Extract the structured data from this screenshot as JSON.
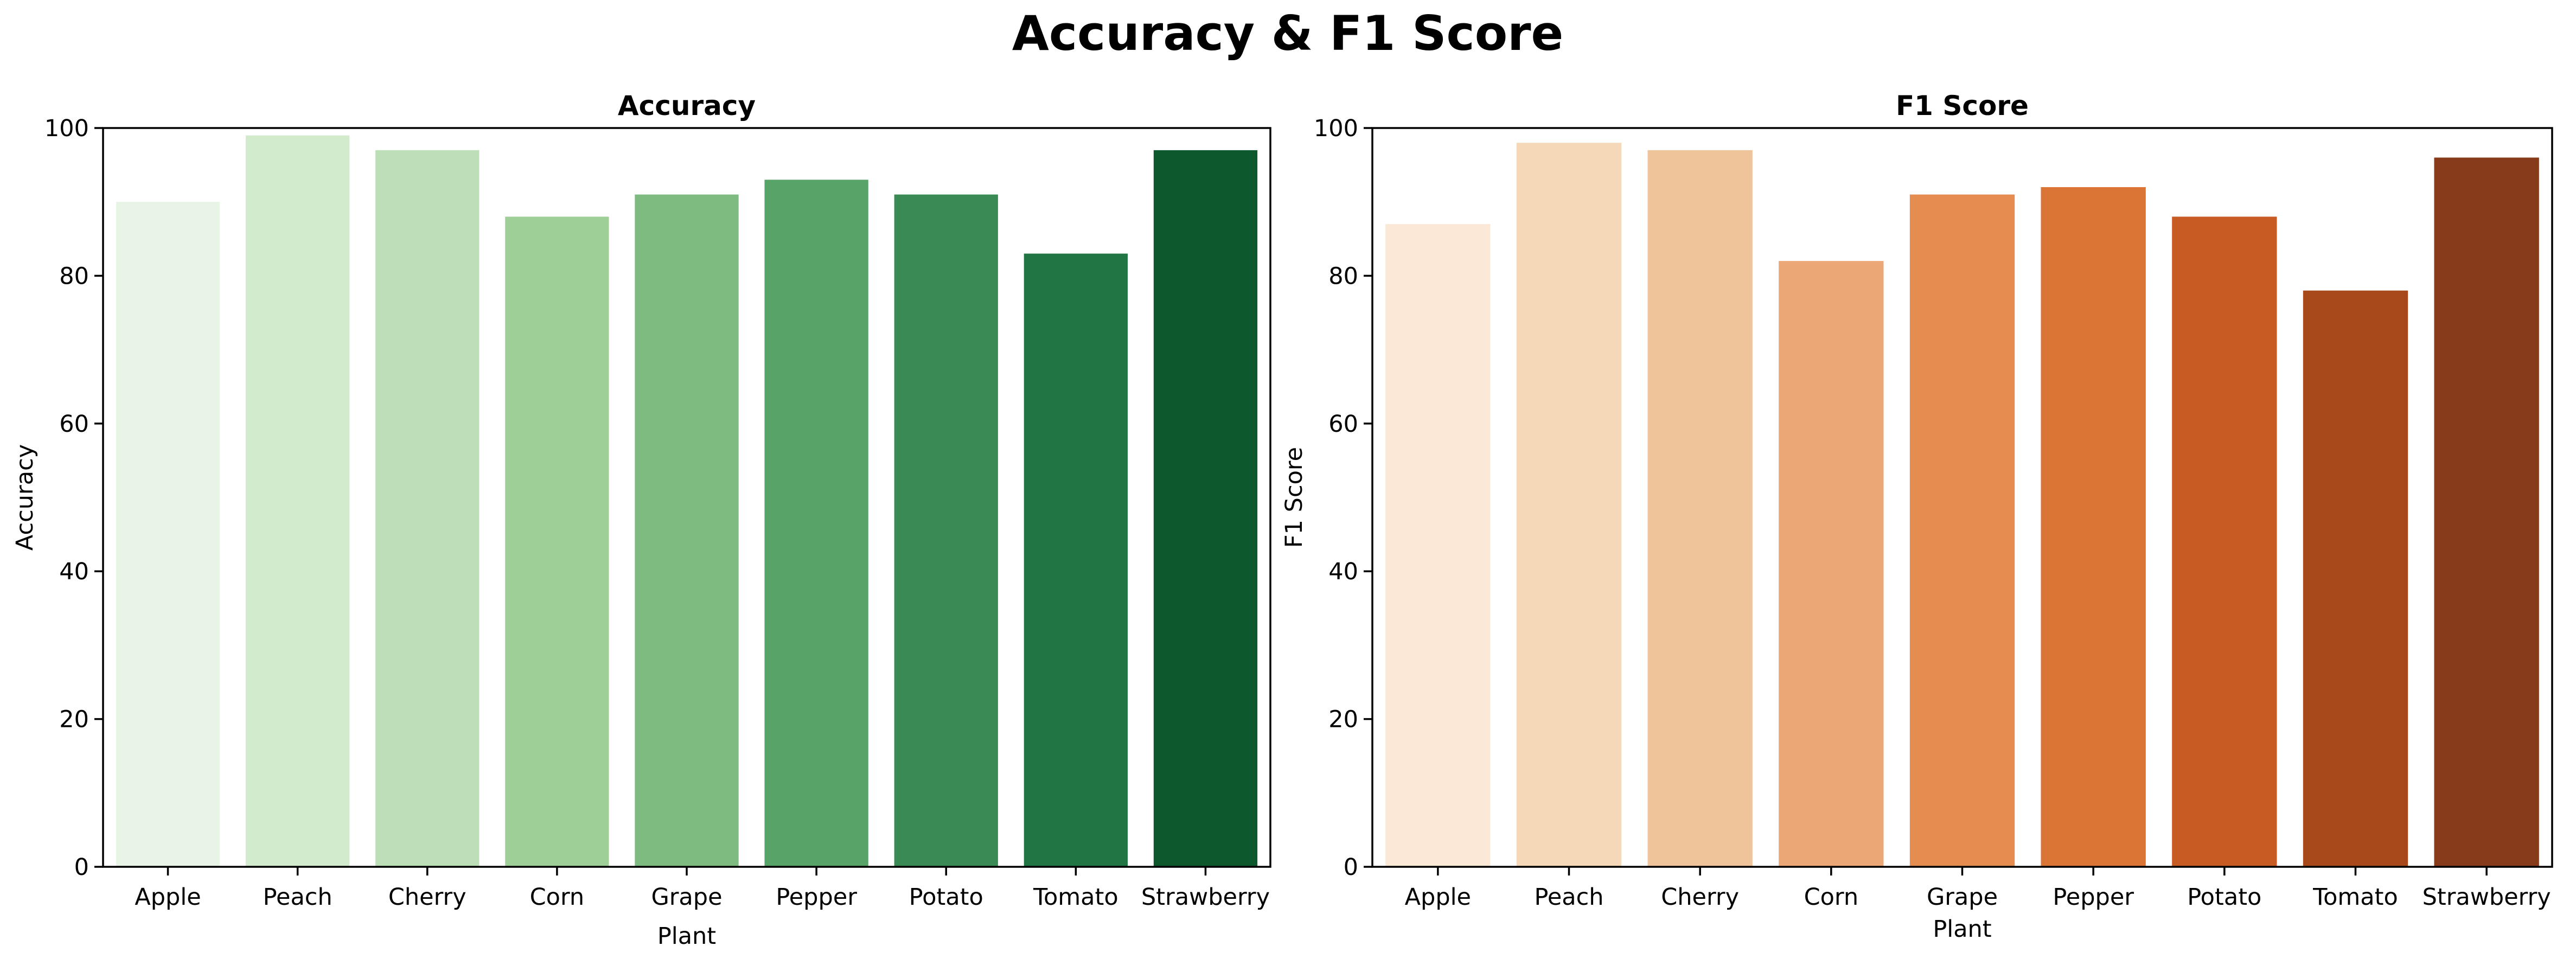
{
  "figure": {
    "title": "Accuracy & F1 Score"
  },
  "chart_data": [
    {
      "type": "bar",
      "title": "Accuracy",
      "xlabel": "Plant",
      "ylabel": "Accuracy",
      "ylim": [
        0,
        100
      ],
      "yticks": [
        0,
        20,
        40,
        60,
        80,
        100
      ],
      "grid": false,
      "categories": [
        "Apple",
        "Peach",
        "Cherry",
        "Corn",
        "Grape",
        "Pepper",
        "Potato",
        "Tomato",
        "Strawberry"
      ],
      "values": [
        90,
        99,
        97,
        88,
        91,
        93,
        91,
        83,
        97
      ],
      "colors": [
        "#e8f4e5",
        "#d3ebcd",
        "#bcdfb7",
        "#9ecf96",
        "#7ebb80",
        "#58a367",
        "#3a8a55",
        "#217545",
        "#0d592d"
      ]
    },
    {
      "type": "bar",
      "title": "F1 Score",
      "xlabel": "Plant",
      "ylabel": "F1 Score",
      "ylim": [
        0,
        100
      ],
      "yticks": [
        0,
        20,
        40,
        60,
        80,
        100
      ],
      "grid": false,
      "categories": [
        "Apple",
        "Peach",
        "Cherry",
        "Corn",
        "Grape",
        "Pepper",
        "Potato",
        "Tomato",
        "Strawberry"
      ],
      "values": [
        87,
        98,
        97,
        82,
        91,
        92,
        88,
        78,
        96
      ],
      "colors": [
        "#fbe8d7",
        "#f4d8b8",
        "#efc49b",
        "#eba775",
        "#e58d51",
        "#da7535",
        "#c65b24",
        "#a8491b",
        "#873b1a"
      ]
    }
  ]
}
